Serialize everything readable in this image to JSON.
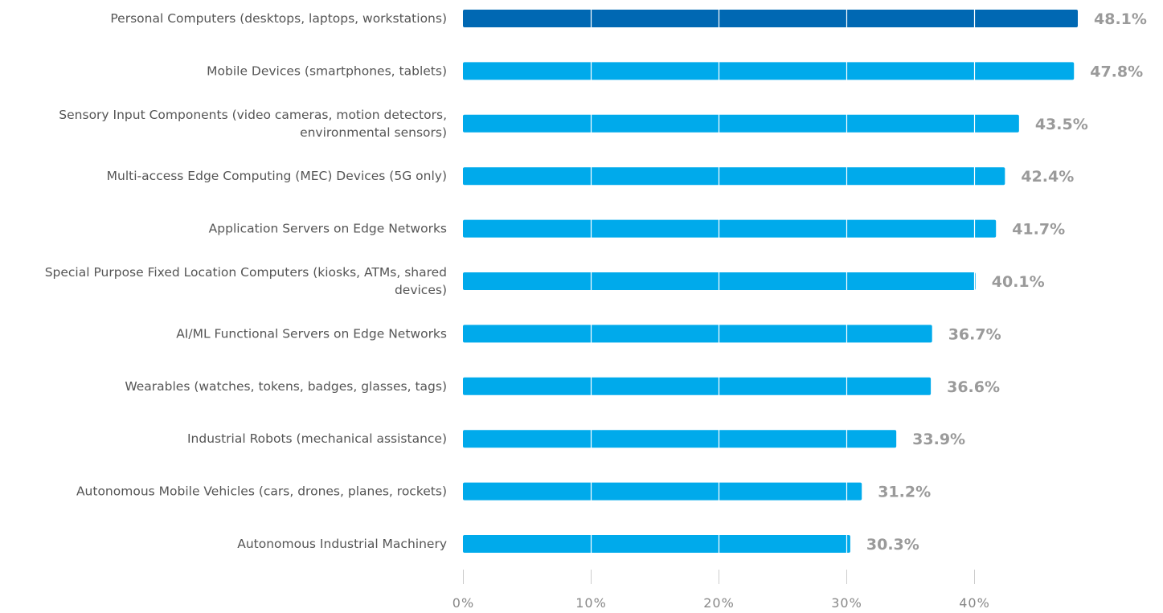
{
  "chart_data": {
    "type": "bar",
    "orientation": "horizontal",
    "categories": [
      [
        "Personal Computers (desktops, laptops, workstations)"
      ],
      [
        "Mobile Devices (smartphones, tablets)"
      ],
      [
        "Sensory Input Components (video cameras, motion detectors,",
        "environmental sensors)"
      ],
      [
        "Multi-access Edge Computing (MEC) Devices (5G only)"
      ],
      [
        "Application Servers on Edge Networks"
      ],
      [
        "Special Purpose Fixed Location Computers (kiosks, ATMs, shared",
        "devices)"
      ],
      [
        "AI/ML Functional Servers on Edge Networks"
      ],
      [
        "Wearables (watches, tokens, badges, glasses, tags)"
      ],
      [
        "Industrial Robots (mechanical assistance)"
      ],
      [
        "Autonomous Mobile Vehicles (cars, drones, planes, rockets)"
      ],
      [
        "Autonomous Industrial Machinery"
      ]
    ],
    "values": [
      48.1,
      47.8,
      43.5,
      42.4,
      41.7,
      40.1,
      36.7,
      36.6,
      33.9,
      31.2,
      30.3
    ],
    "value_labels": [
      "48.1%",
      "47.8%",
      "43.5%",
      "42.4%",
      "41.7%",
      "40.1%",
      "36.7%",
      "36.6%",
      "33.9%",
      "31.2%",
      "30.3%"
    ],
    "xticks": [
      0,
      10,
      20,
      30,
      40
    ],
    "xtick_labels": [
      "0%",
      "10%",
      "20%",
      "30%",
      "40%"
    ],
    "xlim": [
      0,
      48.1
    ],
    "grid": true,
    "highlight_index": 0,
    "colors": {
      "highlight": "#0068b3",
      "bar": "#00aaeb",
      "grid": "#ffffff",
      "axis_tick": "#cccccc",
      "value_label": "#9a9a9a"
    },
    "title": "",
    "xlabel": "",
    "ylabel": ""
  }
}
